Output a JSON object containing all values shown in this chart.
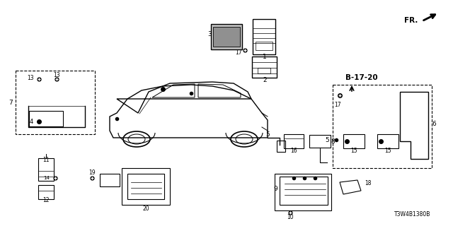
{
  "bg_color": "#ffffff",
  "part_code": "T3W4B1380B",
  "fr_label": "FR.",
  "ref_label": "B-17-20",
  "line_color": "#000000",
  "fig_w": 6.4,
  "fig_h": 3.2,
  "dpi": 100
}
